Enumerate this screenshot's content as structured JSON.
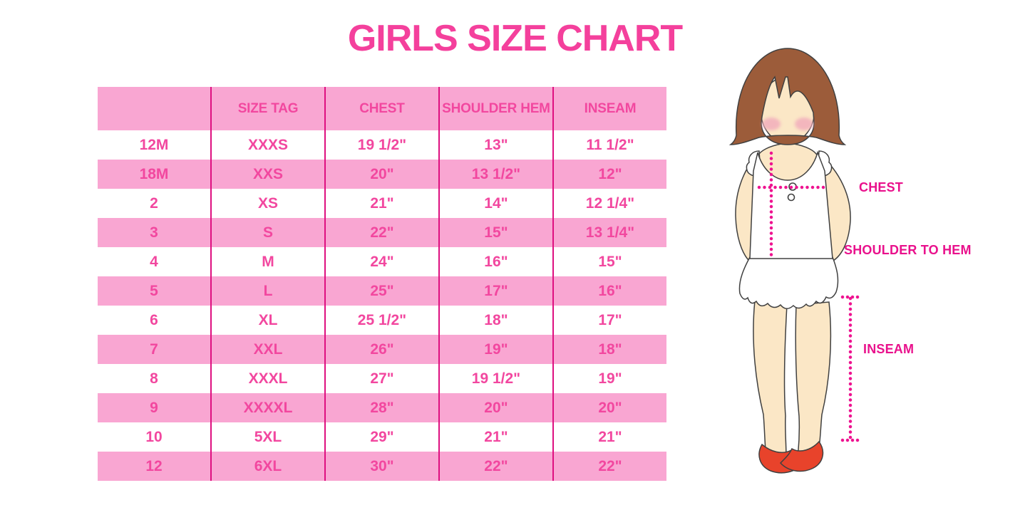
{
  "title": "GIRLS SIZE CHART",
  "chart_data": {
    "type": "table",
    "title": "GIRLS SIZE CHART",
    "columns": [
      "",
      "SIZE TAG",
      "CHEST",
      "SHOULDER HEM",
      "INSEAM"
    ],
    "rows": [
      [
        "12M",
        "XXXS",
        "19 1/2\"",
        "13\"",
        "11 1/2\""
      ],
      [
        "18M",
        "XXS",
        "20\"",
        "13 1/2\"",
        "12\""
      ],
      [
        "2",
        "XS",
        "21\"",
        "14\"",
        "12 1/4\""
      ],
      [
        "3",
        "S",
        "22\"",
        "15\"",
        "13 1/4\""
      ],
      [
        "4",
        "M",
        "24\"",
        "16\"",
        "15\""
      ],
      [
        "5",
        "L",
        "25\"",
        "17\"",
        "16\""
      ],
      [
        "6",
        "XL",
        "25 1/2\"",
        "18\"",
        "17\""
      ],
      [
        "7",
        "XXL",
        "26\"",
        "19\"",
        "18\""
      ],
      [
        "8",
        "XXXL",
        "27\"",
        "19 1/2\"",
        "19\""
      ],
      [
        "9",
        "XXXXL",
        "28\"",
        "20\"",
        "20\""
      ],
      [
        "10",
        "5XL",
        "29\"",
        "21\"",
        "21\""
      ],
      [
        "12",
        "6XL",
        "30\"",
        "22\"",
        "22\""
      ]
    ],
    "layout": {
      "striped": true,
      "stripe_pattern": "header pink, data rows alternate white/pink starting white",
      "column_separators": "magenta vertical lines only, no horizontal borders"
    }
  },
  "diagram": {
    "labels": {
      "chest": "CHEST",
      "shoulder_to_hem": "SHOULDER TO HEM",
      "inseam": "INSEAM"
    }
  },
  "colors": {
    "title_pink": "#F4409C",
    "row_pink": "#F9A6D2",
    "separator_magenta": "#DE1080",
    "cell_text_pink": "#F2479F",
    "label_magenta": "#E9118C",
    "dotted_line_magenta": "#EE1390",
    "hair_brown": "#9C5C3A",
    "skin_tone": "#FBE7C6",
    "blush_pink": "#F2AEBC",
    "shoe_red": "#E8432B"
  }
}
